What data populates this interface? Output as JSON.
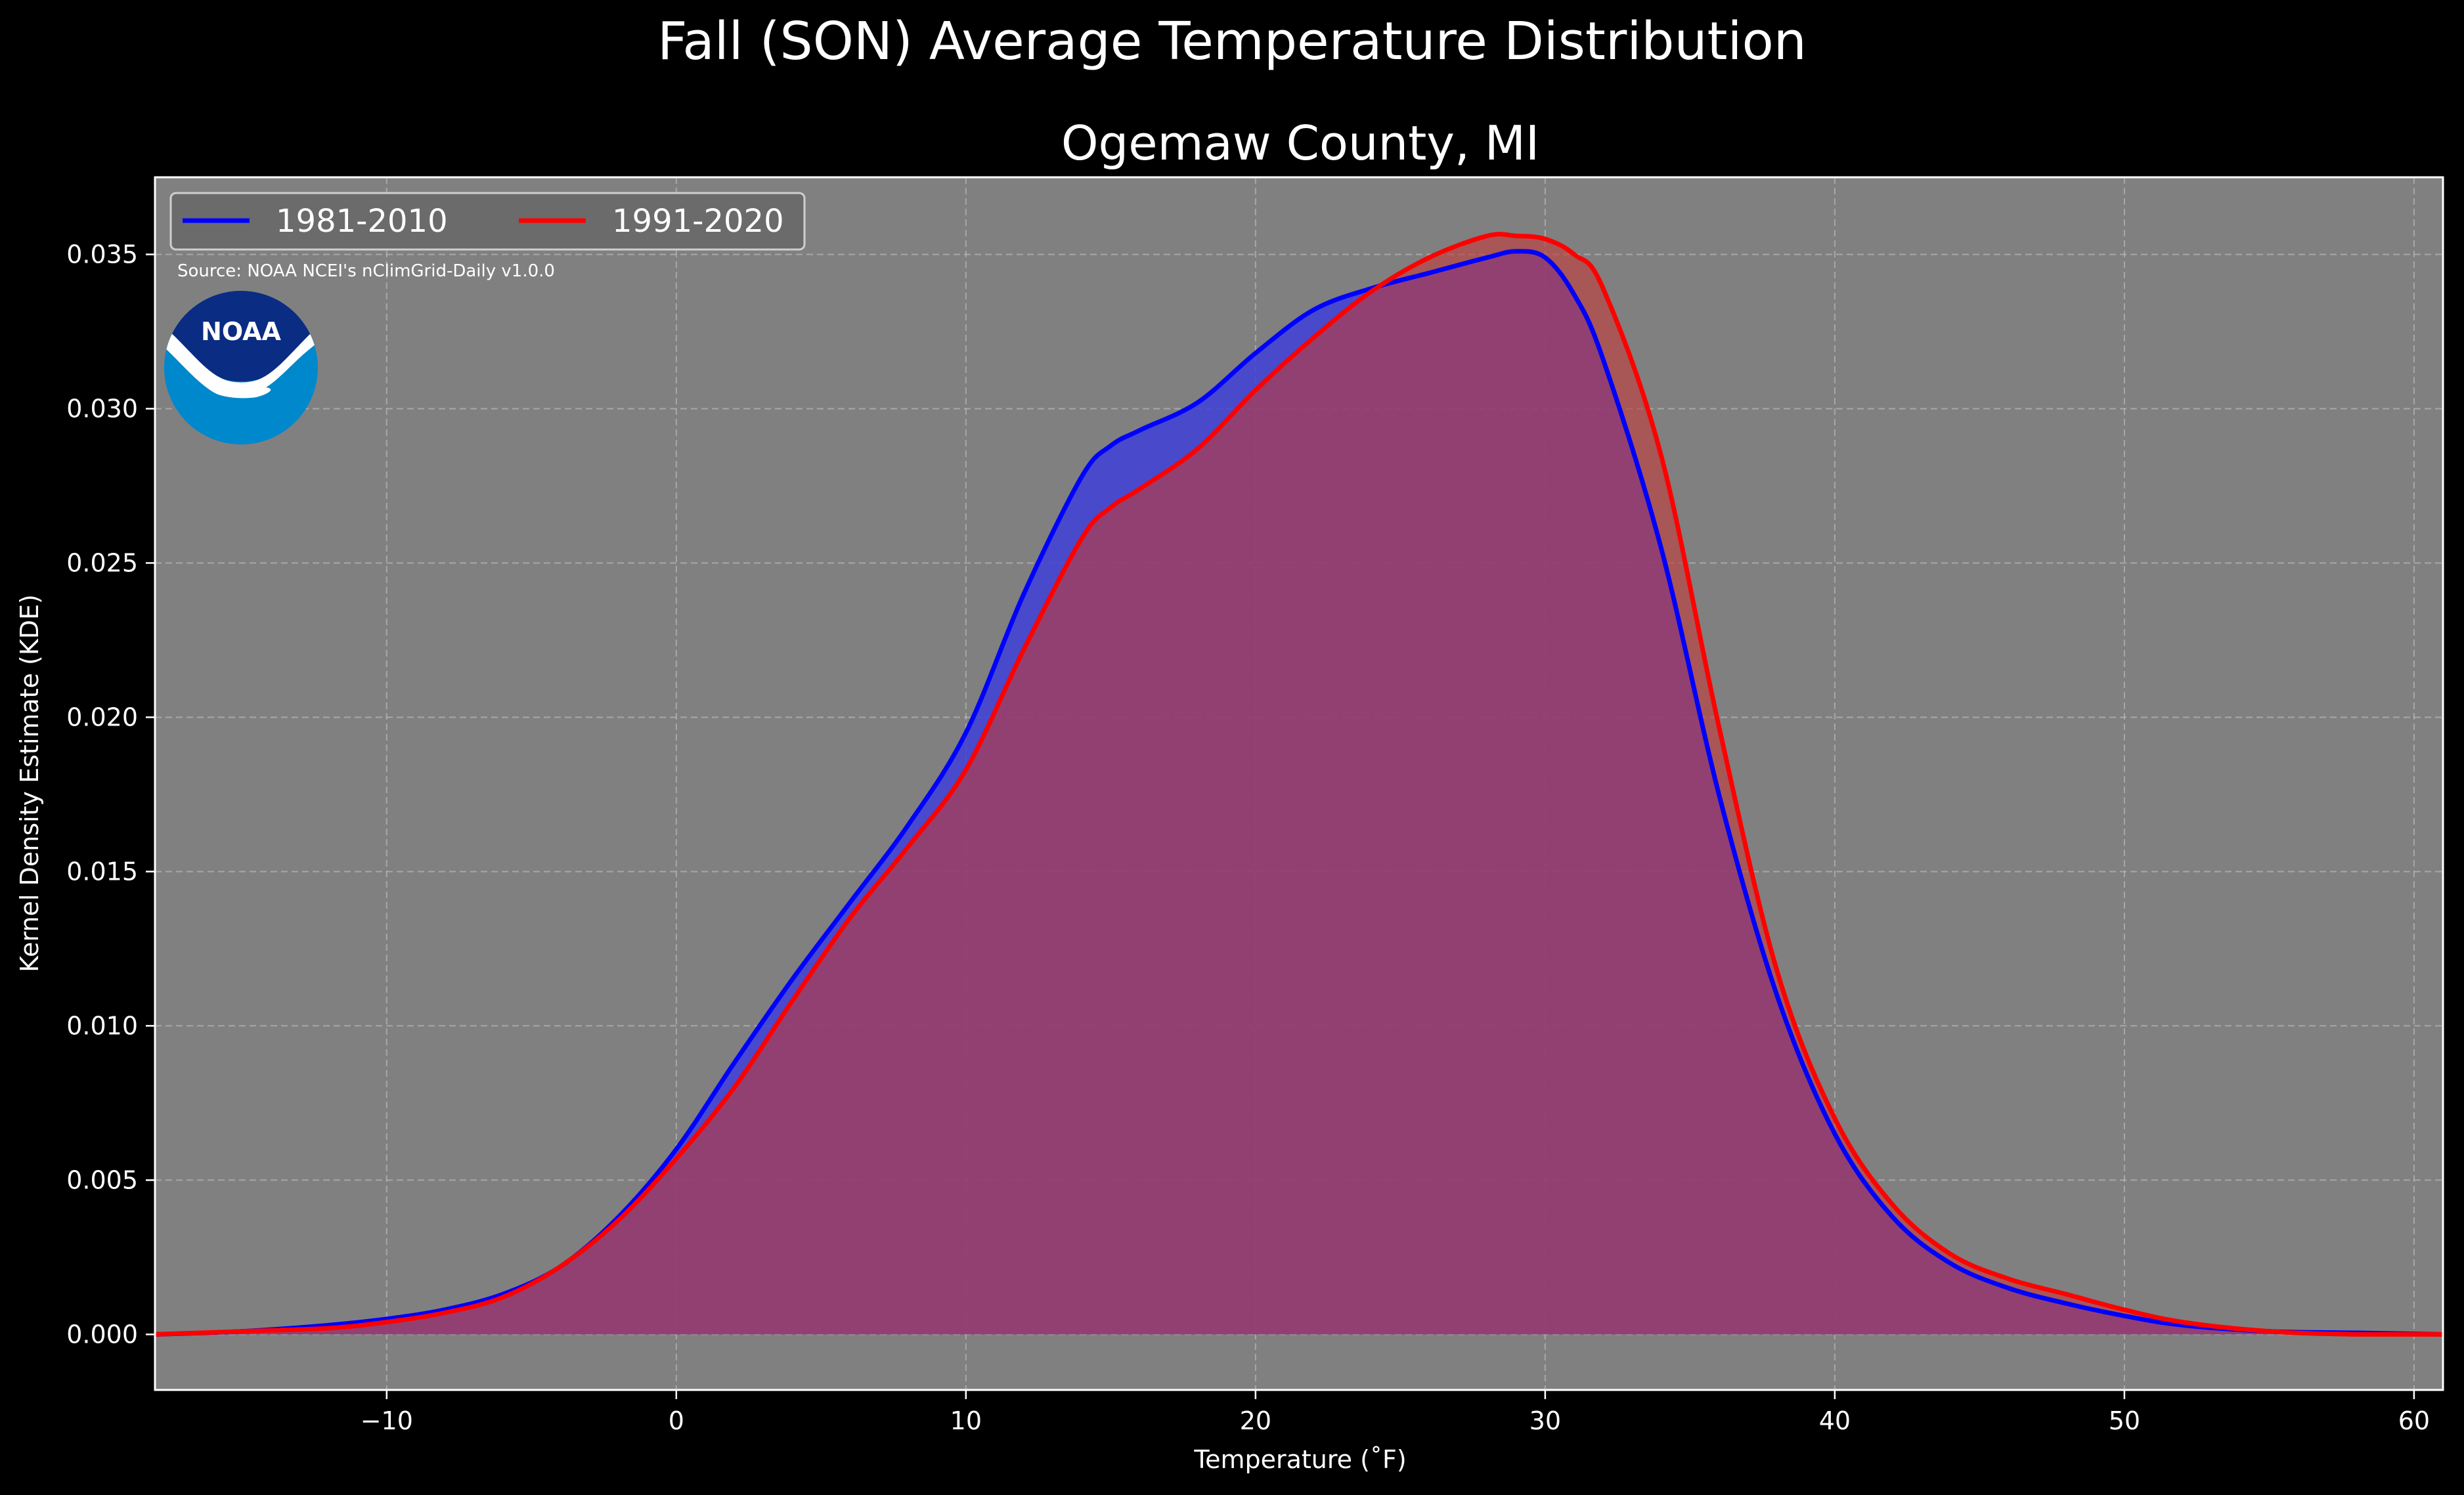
{
  "figure": {
    "suptitle": "Fall (SON) Average Temperature Distribution",
    "background": "#000000"
  },
  "source_note": "Source: NOAA NCEI's nClimGrid-Daily v1.0.0",
  "logo": {
    "icon": "noaa-logo-icon",
    "text": "NOAA",
    "dark_blue": "#0A2C82",
    "light_blue": "#0088CC"
  },
  "chart_data": {
    "type": "area",
    "title": "Ogemaw County, MI",
    "xlabel": "Temperature (˚F)",
    "ylabel": "Kernel Density Estimate (KDE)",
    "xlim": [
      -18,
      61
    ],
    "ylim": [
      -0.0018,
      0.0375
    ],
    "xticks": [
      -10,
      0,
      10,
      20,
      30,
      40,
      50,
      60
    ],
    "xtick_labels": [
      "−10",
      "0",
      "10",
      "20",
      "30",
      "40",
      "50",
      "60"
    ],
    "yticks": [
      0,
      0.005,
      0.01,
      0.015,
      0.02,
      0.025,
      0.03,
      0.035
    ],
    "ytick_labels": [
      "0.000",
      "0.005",
      "0.010",
      "0.015",
      "0.020",
      "0.025",
      "0.030",
      "0.035"
    ],
    "grid": true,
    "legend_position": "top-left",
    "plot_background": "#808080",
    "x": [
      -18,
      -15,
      -12,
      -10,
      -8,
      -6,
      -4,
      -2,
      0,
      2,
      4,
      6,
      8,
      10,
      12,
      14,
      15,
      16,
      18,
      20,
      22,
      24,
      26,
      28,
      29,
      30,
      31,
      32,
      34,
      36,
      38,
      40,
      42,
      44,
      46,
      48,
      50,
      52,
      55,
      58,
      61
    ],
    "series": [
      {
        "name": "1981-2010",
        "color": "#0000FF",
        "fill": "#3F3FD8",
        "values": [
          0.0,
          0.0001,
          0.0003,
          0.0005,
          0.0008,
          0.0013,
          0.0022,
          0.0038,
          0.006,
          0.0088,
          0.0115,
          0.014,
          0.0165,
          0.0195,
          0.024,
          0.0278,
          0.0288,
          0.0293,
          0.0302,
          0.0318,
          0.0332,
          0.0339,
          0.0344,
          0.0349,
          0.0351,
          0.0349,
          0.0337,
          0.0316,
          0.0255,
          0.0175,
          0.011,
          0.0065,
          0.0038,
          0.0023,
          0.0015,
          0.001,
          0.0006,
          0.0003,
          0.0001,
          5e-05,
          0.0
        ]
      },
      {
        "name": "1991-2020",
        "color": "#FF0000",
        "fill": "#C03C3C",
        "values": [
          0.0,
          0.0001,
          0.0002,
          0.0004,
          0.0007,
          0.0012,
          0.0022,
          0.0037,
          0.0057,
          0.008,
          0.0108,
          0.0135,
          0.0158,
          0.0183,
          0.0222,
          0.0258,
          0.0268,
          0.0274,
          0.0287,
          0.0306,
          0.0323,
          0.0338,
          0.0349,
          0.0356,
          0.0356,
          0.0355,
          0.035,
          0.0339,
          0.0285,
          0.0197,
          0.0118,
          0.007,
          0.0042,
          0.0026,
          0.0018,
          0.0013,
          0.0008,
          0.0004,
          0.0001,
          0.0,
          0.0
        ]
      }
    ]
  }
}
